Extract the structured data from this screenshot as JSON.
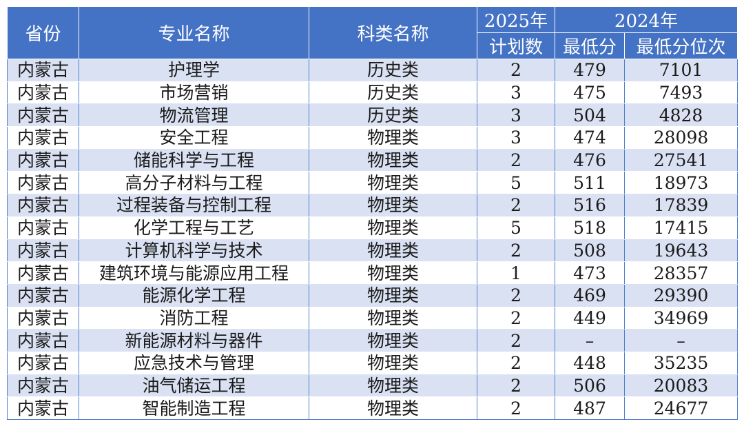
{
  "headers": {
    "province": "省份",
    "major": "专业名称",
    "category": "科类名称",
    "plan_year": "2025年",
    "plan_count": "计划数",
    "prev_year": "2024年",
    "min_score": "最低分",
    "min_rank": "最低分位次"
  },
  "rows": [
    {
      "province": "内蒙古",
      "major": "护理学",
      "category": "历史类",
      "plan": "2",
      "score": "479",
      "rank": "7101"
    },
    {
      "province": "内蒙古",
      "major": "市场营销",
      "category": "历史类",
      "plan": "3",
      "score": "475",
      "rank": "7493"
    },
    {
      "province": "内蒙古",
      "major": "物流管理",
      "category": "历史类",
      "plan": "3",
      "score": "504",
      "rank": "4828"
    },
    {
      "province": "内蒙古",
      "major": "安全工程",
      "category": "物理类",
      "plan": "3",
      "score": "474",
      "rank": "28098"
    },
    {
      "province": "内蒙古",
      "major": "储能科学与工程",
      "category": "物理类",
      "plan": "2",
      "score": "476",
      "rank": "27541"
    },
    {
      "province": "内蒙古",
      "major": "高分子材料与工程",
      "category": "物理类",
      "plan": "5",
      "score": "511",
      "rank": "18973"
    },
    {
      "province": "内蒙古",
      "major": "过程装备与控制工程",
      "category": "物理类",
      "plan": "2",
      "score": "516",
      "rank": "17839"
    },
    {
      "province": "内蒙古",
      "major": "化学工程与工艺",
      "category": "物理类",
      "plan": "5",
      "score": "518",
      "rank": "17415"
    },
    {
      "province": "内蒙古",
      "major": "计算机科学与技术",
      "category": "物理类",
      "plan": "2",
      "score": "508",
      "rank": "19643"
    },
    {
      "province": "内蒙古",
      "major": "建筑环境与能源应用工程",
      "category": "物理类",
      "plan": "1",
      "score": "473",
      "rank": "28357"
    },
    {
      "province": "内蒙古",
      "major": "能源化学工程",
      "category": "物理类",
      "plan": "2",
      "score": "469",
      "rank": "29390"
    },
    {
      "province": "内蒙古",
      "major": "消防工程",
      "category": "物理类",
      "plan": "2",
      "score": "449",
      "rank": "34969"
    },
    {
      "province": "内蒙古",
      "major": "新能源材料与器件",
      "category": "物理类",
      "plan": "2",
      "score": "–",
      "rank": "–"
    },
    {
      "province": "内蒙古",
      "major": "应急技术与管理",
      "category": "物理类",
      "plan": "2",
      "score": "448",
      "rank": "35235"
    },
    {
      "province": "内蒙古",
      "major": "油气储运工程",
      "category": "物理类",
      "plan": "2",
      "score": "506",
      "rank": "20083"
    },
    {
      "province": "内蒙古",
      "major": "智能制造工程",
      "category": "物理类",
      "plan": "2",
      "score": "487",
      "rank": "24677"
    }
  ]
}
